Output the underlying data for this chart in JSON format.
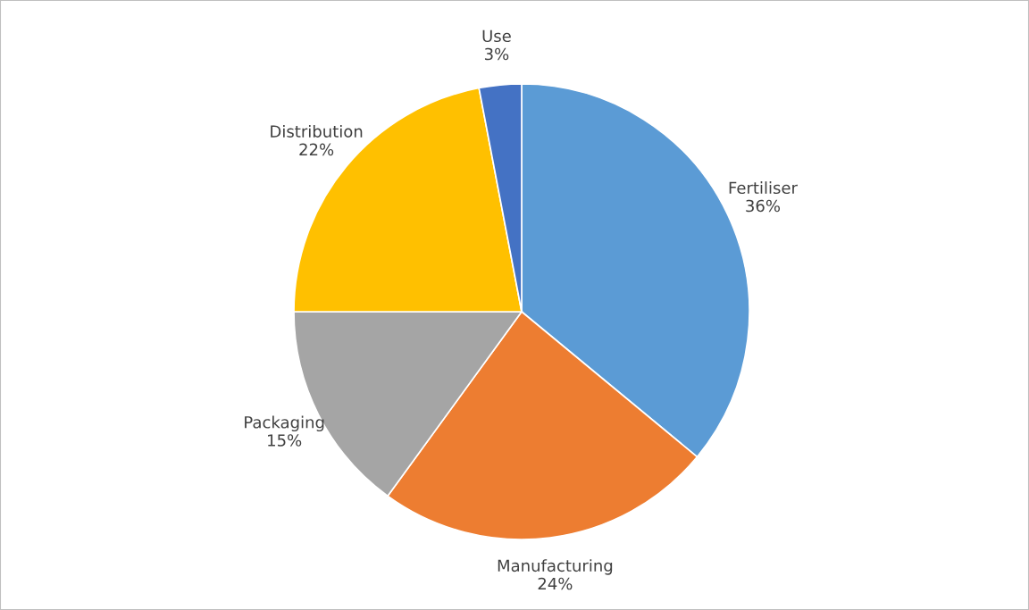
{
  "chart_data": {
    "type": "pie",
    "categories": [
      "Fertiliser",
      "Manufacturing",
      "Packaging",
      "Distribution",
      "Use"
    ],
    "values": [
      36,
      24,
      15,
      22,
      3
    ],
    "value_labels": [
      "36%",
      "24%",
      "15%",
      "22%",
      "3%"
    ],
    "colors": [
      "#5b9bd5",
      "#ed7d31",
      "#a5a5a5",
      "#ffc000",
      "#4472c4"
    ],
    "legend": false
  }
}
